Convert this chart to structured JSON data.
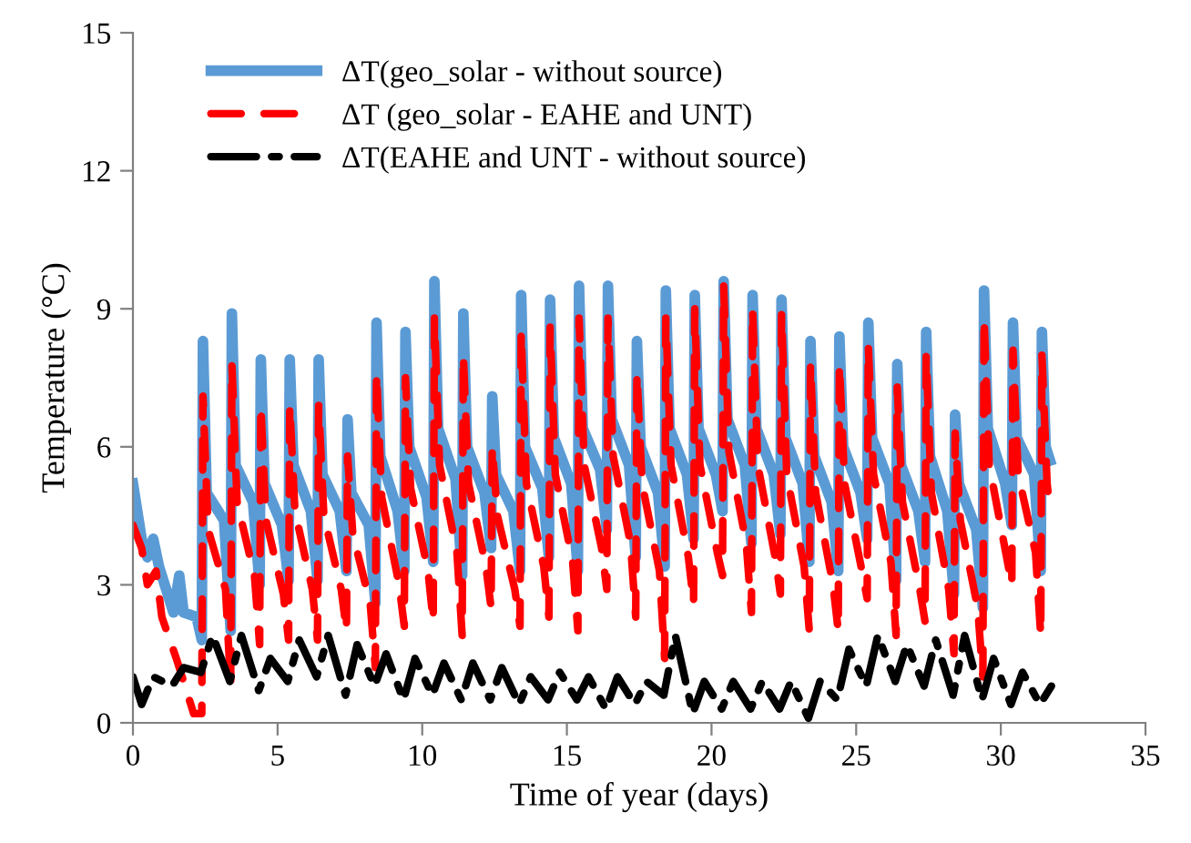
{
  "chart_data": {
    "type": "line",
    "xlabel": "Time of year (days)",
    "ylabel": "Temperature (°C)",
    "xlim": [
      0,
      35
    ],
    "xticks": [
      0,
      5,
      10,
      15,
      20,
      25,
      30,
      35
    ],
    "ylim": [
      0,
      15
    ],
    "yticks": [
      0,
      3,
      6,
      9,
      12,
      15
    ],
    "grid": false,
    "legend": "top left",
    "marker": "none",
    "series": [
      {
        "name": "ΔT(geo_solar - without source)",
        "color": "#5b9bd5",
        "line_style": "solid",
        "x": [
          0,
          0.3,
          0.5,
          0.7,
          0.9,
          1.4,
          1.6,
          1.75,
          2.2,
          2.38,
          2.42,
          2.55,
          3.15,
          3.38,
          3.42,
          3.55,
          4.15,
          4.38,
          4.42,
          4.55,
          5.15,
          5.38,
          5.42,
          5.55,
          6.15,
          6.38,
          6.42,
          6.55,
          7.15,
          7.38,
          7.42,
          7.55,
          8.15,
          8.38,
          8.42,
          8.55,
          9.15,
          9.38,
          9.42,
          9.55,
          10.15,
          10.38,
          10.42,
          10.55,
          11.15,
          11.38,
          11.42,
          11.55,
          12.15,
          12.38,
          12.42,
          12.55,
          13.15,
          13.38,
          13.42,
          13.55,
          14.15,
          14.38,
          14.42,
          14.55,
          15.15,
          15.38,
          15.42,
          15.55,
          16.15,
          16.38,
          16.42,
          16.55,
          17.15,
          17.38,
          17.42,
          17.55,
          18.15,
          18.38,
          18.42,
          18.55,
          19.15,
          19.38,
          19.42,
          19.55,
          20.15,
          20.38,
          20.42,
          20.55,
          21.15,
          21.38,
          21.42,
          21.55,
          22.15,
          22.38,
          22.42,
          22.55,
          23.15,
          23.38,
          23.42,
          23.55,
          24.15,
          24.38,
          24.42,
          24.55,
          25.15,
          25.38,
          25.42,
          25.55,
          26.15,
          26.38,
          26.42,
          26.55,
          27.15,
          27.38,
          27.42,
          27.55,
          28.15,
          28.38,
          28.42,
          28.55,
          29.15,
          29.38,
          29.42,
          29.55,
          30.15,
          30.38,
          30.42,
          30.55,
          31.15,
          31.38,
          31.42,
          31.55,
          31.7
        ],
        "values": [
          5.2,
          4.0,
          3.6,
          4.0,
          3.4,
          2.4,
          3.2,
          2.4,
          2.3,
          1.8,
          8.3,
          5.0,
          4.4,
          2.0,
          8.9,
          5.6,
          4.8,
          3.0,
          7.9,
          5.2,
          4.3,
          3.1,
          7.9,
          5.6,
          4.6,
          3.1,
          7.9,
          5.4,
          4.6,
          3.3,
          6.6,
          5.0,
          4.3,
          2.6,
          8.7,
          5.8,
          4.6,
          3.3,
          8.5,
          6.0,
          4.9,
          3.5,
          9.6,
          6.4,
          5.3,
          3.2,
          8.9,
          6.0,
          5.0,
          3.8,
          7.1,
          5.4,
          4.6,
          3.3,
          9.3,
          6.0,
          5.1,
          3.6,
          9.2,
          6.2,
          5.2,
          3.3,
          9.5,
          6.4,
          5.5,
          4.2,
          9.5,
          6.6,
          5.6,
          3.6,
          8.3,
          6.0,
          5.0,
          3.4,
          9.4,
          6.4,
          5.4,
          4.0,
          9.3,
          6.4,
          5.4,
          4.6,
          9.6,
          6.6,
          5.6,
          3.9,
          9.3,
          6.4,
          5.4,
          4.1,
          9.2,
          6.2,
          5.2,
          3.5,
          8.3,
          5.8,
          4.8,
          3.3,
          8.4,
          6.0,
          5.0,
          4.0,
          8.7,
          6.2,
          5.2,
          3.1,
          7.8,
          5.6,
          4.6,
          3.5,
          8.5,
          5.8,
          4.6,
          2.8,
          6.7,
          5.2,
          4.2,
          2.5,
          9.4,
          6.4,
          5.2,
          4.3,
          8.7,
          6.2,
          5.4,
          3.3,
          8.5,
          6.0,
          5.7
        ]
      },
      {
        "name": "ΔT (geo_solar - EAHE and UNT)",
        "color": "#ff0000",
        "line_style": "dashed",
        "x": [
          0,
          0.3,
          0.5,
          0.8,
          1.0,
          1.5,
          1.8,
          2.1,
          2.38,
          2.42,
          2.6,
          3.2,
          3.38,
          3.42,
          3.6,
          4.2,
          4.38,
          4.42,
          4.6,
          5.2,
          5.38,
          5.42,
          5.6,
          6.2,
          6.38,
          6.42,
          6.6,
          7.2,
          7.38,
          7.42,
          7.6,
          8.2,
          8.38,
          8.42,
          8.6,
          9.2,
          9.38,
          9.42,
          9.6,
          10.2,
          10.38,
          10.42,
          10.6,
          11.2,
          11.38,
          11.42,
          11.6,
          12.2,
          12.38,
          12.42,
          12.6,
          13.2,
          13.38,
          13.42,
          13.6,
          14.2,
          14.38,
          14.42,
          14.6,
          15.2,
          15.38,
          15.42,
          15.6,
          16.2,
          16.38,
          16.42,
          16.6,
          17.2,
          17.38,
          17.42,
          17.6,
          18.2,
          18.38,
          18.42,
          18.6,
          19.2,
          19.38,
          19.42,
          19.6,
          20.2,
          20.38,
          20.42,
          20.6,
          21.2,
          21.38,
          21.42,
          21.6,
          22.2,
          22.38,
          22.42,
          22.6,
          23.2,
          23.38,
          23.42,
          23.6,
          24.2,
          24.38,
          24.42,
          24.6,
          25.2,
          25.38,
          25.42,
          25.6,
          26.2,
          26.38,
          26.42,
          26.6,
          27.2,
          27.38,
          27.42,
          27.6,
          28.2,
          28.38,
          28.42,
          28.6,
          29.2,
          29.38,
          29.42,
          29.6,
          30.2,
          30.38,
          30.42,
          30.6,
          31.2,
          31.38,
          31.42,
          31.6,
          31.7
        ],
        "values": [
          4.3,
          3.8,
          3.0,
          3.3,
          2.3,
          1.4,
          0.8,
          0.2,
          0.2,
          7.1,
          4.2,
          2.9,
          0.8,
          7.8,
          4.8,
          3.2,
          1.7,
          6.9,
          4.4,
          2.8,
          1.8,
          6.9,
          4.6,
          2.9,
          1.8,
          6.9,
          4.5,
          2.9,
          2.0,
          5.8,
          4.1,
          2.6,
          1.2,
          7.6,
          4.9,
          3.0,
          2.1,
          7.5,
          5.1,
          3.3,
          2.2,
          8.8,
          5.6,
          3.7,
          1.9,
          8.0,
          5.2,
          3.4,
          2.5,
          6.0,
          4.5,
          2.9,
          2.1,
          8.5,
          5.2,
          3.4,
          2.3,
          8.6,
          5.4,
          3.5,
          2.0,
          8.8,
          5.6,
          3.8,
          2.9,
          8.8,
          5.8,
          3.9,
          2.3,
          7.6,
          5.2,
          3.3,
          1.4,
          8.8,
          5.6,
          3.6,
          2.6,
          9.0,
          5.6,
          3.7,
          3.2,
          9.5,
          5.9,
          3.9,
          2.4,
          9.0,
          5.6,
          3.6,
          2.8,
          8.9,
          5.4,
          3.4,
          2.0,
          7.8,
          5.0,
          3.0,
          2.0,
          7.8,
          5.2,
          3.3,
          2.7,
          8.2,
          5.4,
          3.5,
          1.9,
          7.3,
          4.8,
          2.9,
          2.2,
          8.0,
          5.0,
          2.9,
          1.5,
          6.3,
          4.4,
          2.5,
          1.0,
          8.8,
          5.6,
          3.6,
          3.0,
          8.1,
          5.4,
          3.7,
          1.9,
          8.0,
          5.2,
          4.6
        ]
      },
      {
        "name": "ΔT(EAHE and UNT - without source)",
        "color": "#000000",
        "line_style": "dashdot",
        "x": [
          0,
          0.3,
          0.7,
          1.35,
          1.75,
          2.35,
          2.75,
          3.35,
          3.75,
          4.35,
          4.75,
          5.35,
          5.75,
          6.35,
          6.75,
          7.35,
          7.75,
          8.35,
          8.75,
          9.35,
          9.75,
          10.35,
          10.75,
          11.35,
          11.75,
          12.35,
          12.75,
          13.35,
          13.75,
          14.35,
          14.75,
          15.35,
          15.75,
          16.35,
          16.75,
          17.35,
          17.75,
          18.35,
          18.75,
          19.35,
          19.75,
          20.35,
          20.75,
          21.35,
          21.75,
          22.35,
          22.75,
          23.35,
          23.75,
          24.35,
          24.75,
          25.35,
          25.75,
          26.35,
          26.75,
          27.35,
          27.75,
          28.35,
          28.75,
          29.35,
          29.75,
          30.35,
          30.75,
          31.35,
          31.75
        ],
        "values": [
          1.0,
          0.4,
          1.0,
          0.8,
          1.2,
          1.1,
          1.9,
          0.9,
          1.9,
          0.7,
          1.4,
          0.9,
          1.8,
          1.0,
          1.9,
          0.6,
          1.7,
          0.8,
          1.5,
          0.5,
          1.4,
          0.6,
          1.3,
          0.5,
          1.3,
          0.5,
          1.2,
          0.4,
          1.0,
          0.5,
          1.1,
          0.5,
          1.0,
          0.3,
          1.0,
          0.4,
          0.9,
          0.6,
          1.9,
          0.2,
          0.9,
          0.3,
          0.9,
          0.3,
          0.9,
          0.3,
          0.9,
          0.1,
          0.9,
          0.5,
          1.6,
          0.8,
          1.9,
          0.9,
          1.7,
          0.8,
          1.8,
          0.6,
          1.9,
          0.5,
          1.4,
          0.4,
          1.1,
          0.4,
          0.8
        ]
      }
    ]
  }
}
